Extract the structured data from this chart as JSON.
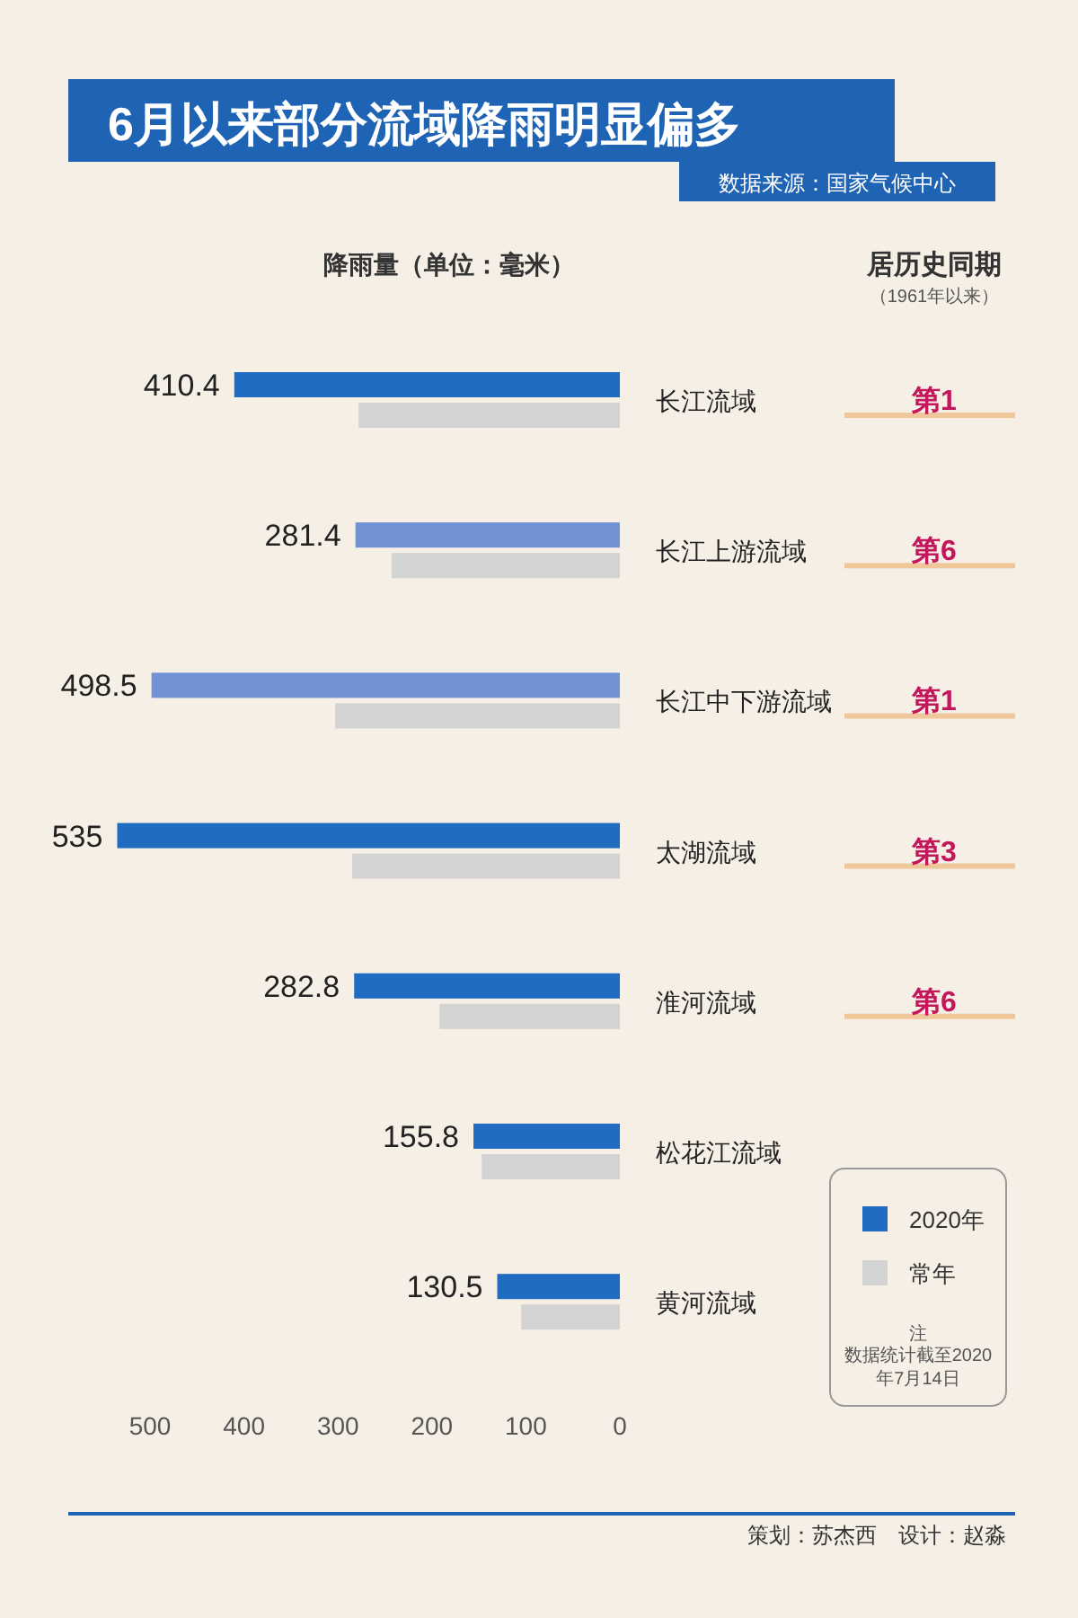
{
  "chart_data": {
    "type": "bar",
    "orientation": "horizontal",
    "title": "6月以来部分流域降雨明显偏多",
    "subtitle": "数据来源：国家气候中心",
    "xlabel": "降雨量（单位：毫米）",
    "categories": [
      "长江流域",
      "长江上游流域",
      "长江中下游流域",
      "太湖流域",
      "淮河流域",
      "松花江流域",
      "黄河流域"
    ],
    "series": [
      {
        "name": "2020年",
        "color": "#1f6cc0",
        "colors": [
          "#1f6cc0",
          "#7192d4",
          "#7192d4",
          "#1f6cc0",
          "#1f6cc0",
          "#1f6cc0",
          "#1f6cc0"
        ],
        "values": [
          410.4,
          281.4,
          498.5,
          535,
          282.8,
          155.8,
          130.5
        ],
        "value_labels": [
          "410.4",
          "281.4",
          "498.5",
          "535",
          "282.8",
          "155.8",
          "130.5"
        ]
      },
      {
        "name": "常年",
        "color": "#d3d3d3",
        "values": [
          278,
          243,
          303,
          285,
          192,
          147,
          105
        ]
      }
    ],
    "xlim": [
      545,
      0
    ],
    "xticks": [
      500,
      400,
      300,
      200,
      100,
      0
    ],
    "grid": false,
    "legend": "bottom right",
    "annotations": [
      "居历史同期",
      "（1961年以来）",
      "第1",
      "第6",
      "第1",
      "第3",
      "第6",
      "注",
      "数据统计截至2020年7月14日",
      "策划：苏杰西　设计：赵淼"
    ]
  }
}
